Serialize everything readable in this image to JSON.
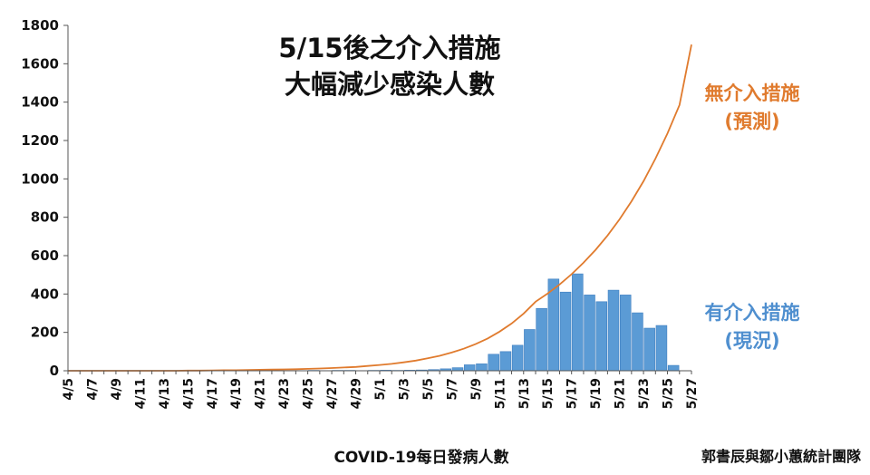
{
  "title_line1": "5/15後之介入措施",
  "title_line2": "大幅減少感染人數",
  "annotation_no_intervention": {
    "line1": "無介入措施",
    "line2": "(預測)"
  },
  "annotation_with_intervention": {
    "line1": "有介入措施",
    "line2": "(現況)"
  },
  "xlabel": "COVID-19每日發病人數",
  "credit": "郭書辰與鄒小蕙統計團隊",
  "colors": {
    "bar": "#5b9bd5",
    "bar_stroke": "#3f7fc0",
    "line": "#e07b2e"
  },
  "chart_data": {
    "type": "bar",
    "title": "5/15後之介入措施 大幅減少感染人數",
    "xlabel": "COVID-19每日發病人數",
    "ylabel": "",
    "ylim": [
      0,
      1800
    ],
    "yticks": [
      0,
      200,
      400,
      600,
      800,
      1000,
      1200,
      1400,
      1600,
      1800
    ],
    "grid": false,
    "categories": [
      "4/5",
      "4/6",
      "4/7",
      "4/8",
      "4/9",
      "4/10",
      "4/11",
      "4/12",
      "4/13",
      "4/14",
      "4/15",
      "4/16",
      "4/17",
      "4/18",
      "4/19",
      "4/20",
      "4/21",
      "4/22",
      "4/23",
      "4/24",
      "4/25",
      "4/26",
      "4/27",
      "4/28",
      "4/29",
      "4/30",
      "5/1",
      "5/2",
      "5/3",
      "5/4",
      "5/5",
      "5/6",
      "5/7",
      "5/8",
      "5/9",
      "5/10",
      "5/11",
      "5/12",
      "5/13",
      "5/14",
      "5/15",
      "5/16",
      "5/17",
      "5/18",
      "5/19",
      "5/20",
      "5/21",
      "5/22",
      "5/23",
      "5/24",
      "5/25",
      "5/26",
      "5/27"
    ],
    "tick_labels": [
      "4/5",
      "4/7",
      "4/9",
      "4/11",
      "4/13",
      "4/15",
      "4/17",
      "4/19",
      "4/21",
      "4/23",
      "4/25",
      "4/27",
      "4/29",
      "5/1",
      "5/3",
      "5/5",
      "5/7",
      "5/9",
      "5/11",
      "5/13",
      "5/15",
      "5/17",
      "5/19",
      "5/21",
      "5/23",
      "5/25",
      "5/27"
    ],
    "series": [
      {
        "name": "有介入措施 (現況)",
        "type": "bar",
        "values": [
          1,
          0,
          0,
          0,
          1,
          0,
          0,
          1,
          0,
          0,
          2,
          1,
          0,
          1,
          1,
          2,
          1,
          2,
          1,
          1,
          2,
          1,
          2,
          2,
          1,
          2,
          3,
          2,
          3,
          4,
          6,
          10,
          16,
          31,
          36,
          86,
          100,
          133,
          215,
          325,
          478,
          410,
          505,
          395,
          360,
          420,
          395,
          302,
          222,
          236,
          28,
          0,
          0
        ]
      },
      {
        "name": "無介入措施 (預測)",
        "type": "line",
        "values": [
          0,
          0,
          0,
          0,
          0,
          0,
          0,
          0,
          0,
          0,
          1,
          1,
          2,
          3,
          3,
          4,
          5,
          6,
          7,
          8,
          10,
          12,
          14,
          17,
          20,
          25,
          30,
          36,
          44,
          53,
          65,
          78,
          95,
          115,
          139,
          168,
          204,
          246,
          298,
          360,
          402,
          450,
          503,
          563,
          630,
          705,
          789,
          883,
          988,
          1106,
          1237,
          1385,
          1700
        ]
      }
    ]
  }
}
